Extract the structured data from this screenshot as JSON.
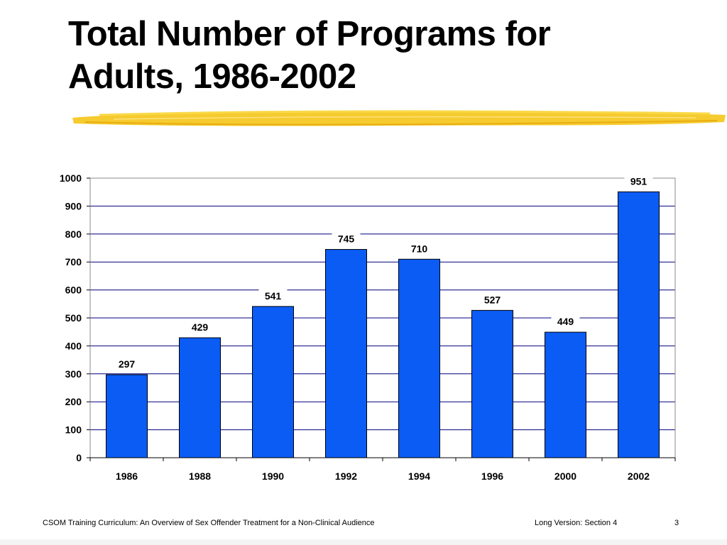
{
  "slide": {
    "title": "Total Number of Programs for\nAdults, 1986-2002"
  },
  "footer": {
    "left": "CSOM Training Curriculum:  An Overview of Sex Offender Treatment for a Non-Clinical Audience",
    "section": "Long Version:  Section 4",
    "page": "3"
  },
  "colors": {
    "bar": "#0a5cf5",
    "highlighter": "#f5c518"
  },
  "chart_data": {
    "type": "bar",
    "title": "",
    "xlabel": "",
    "ylabel": "",
    "categories": [
      "1986",
      "1988",
      "1990",
      "1992",
      "1994",
      "1996",
      "2000",
      "2002"
    ],
    "values": [
      297,
      429,
      541,
      745,
      710,
      527,
      449,
      951
    ],
    "ylim": [
      0,
      1000
    ],
    "yticks": [
      0,
      100,
      200,
      300,
      400,
      500,
      600,
      700,
      800,
      900,
      1000
    ],
    "grid": true,
    "legend": "none",
    "data_labels": true
  }
}
